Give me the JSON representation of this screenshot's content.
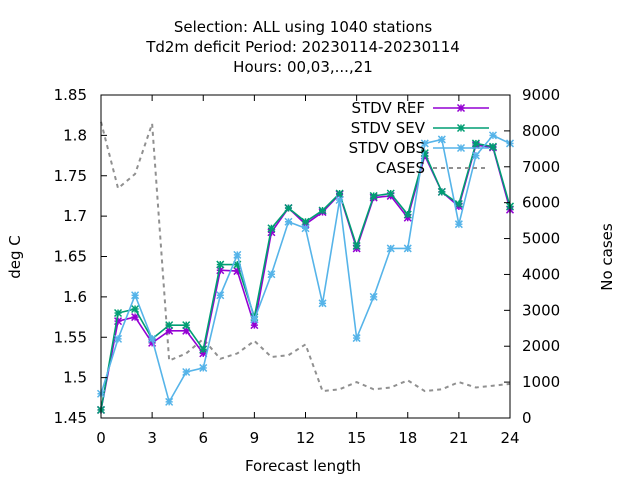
{
  "chart_data": {
    "type": "line",
    "title_lines": [
      "Selection: ALL using  1040 stations",
      "Td2m deficit   Period: 20230114-20230114",
      "Hours:  00,03,...,21"
    ],
    "xlabel": "Forecast length",
    "ylabel": "deg C",
    "y2label": "No cases",
    "xlim": [
      0,
      24
    ],
    "ylim": [
      1.45,
      1.85
    ],
    "y2lim": [
      0,
      9000
    ],
    "xticks": [
      "0",
      "3",
      "6",
      "9",
      "12",
      "15",
      "18",
      "21",
      "24"
    ],
    "yticks": [
      "1.45",
      "1.5",
      "1.55",
      "1.6",
      "1.65",
      "1.7",
      "1.75",
      "1.8",
      "1.85"
    ],
    "y2ticks": [
      "0",
      "1000",
      "2000",
      "3000",
      "4000",
      "5000",
      "6000",
      "7000",
      "8000",
      "9000"
    ],
    "grid": false,
    "legend_position": "top-right",
    "x": [
      0,
      1,
      2,
      3,
      4,
      5,
      6,
      7,
      8,
      9,
      10,
      11,
      12,
      13,
      14,
      15,
      16,
      17,
      18,
      19,
      20,
      21,
      22,
      23,
      24
    ],
    "series": [
      {
        "name": "STDV REF",
        "axis": "left",
        "color": "#9400d3",
        "values": [
          1.46,
          1.57,
          1.575,
          1.543,
          1.558,
          1.558,
          1.53,
          1.633,
          1.632,
          1.565,
          1.68,
          1.71,
          1.69,
          1.705,
          1.727,
          1.66,
          1.723,
          1.725,
          1.698,
          1.775,
          1.73,
          1.712,
          1.788,
          1.785,
          1.708
        ]
      },
      {
        "name": "STDV SEV",
        "axis": "left",
        "color": "#009e73",
        "values": [
          1.46,
          1.58,
          1.585,
          1.548,
          1.565,
          1.565,
          1.535,
          1.64,
          1.64,
          1.575,
          1.685,
          1.71,
          1.693,
          1.707,
          1.728,
          1.663,
          1.725,
          1.728,
          1.702,
          1.778,
          1.73,
          1.715,
          1.79,
          1.786,
          1.712
        ]
      },
      {
        "name": "STDV OBS",
        "axis": "left",
        "color": "#56b4e9",
        "values": [
          1.48,
          1.548,
          1.602,
          1.548,
          1.47,
          1.507,
          1.512,
          1.602,
          1.652,
          1.572,
          1.628,
          1.693,
          1.685,
          1.592,
          1.72,
          1.549,
          1.6,
          1.66,
          1.66,
          1.79,
          1.795,
          1.69,
          1.775,
          1.8,
          1.79
        ]
      },
      {
        "name": "CASES",
        "axis": "right",
        "color": "#909090",
        "values": [
          8250,
          6400,
          6800,
          8200,
          1600,
          1800,
          2200,
          1650,
          1800,
          2150,
          1700,
          1750,
          2050,
          750,
          800,
          1000,
          800,
          850,
          1050,
          750,
          800,
          1000,
          850,
          900,
          950
        ]
      }
    ]
  }
}
